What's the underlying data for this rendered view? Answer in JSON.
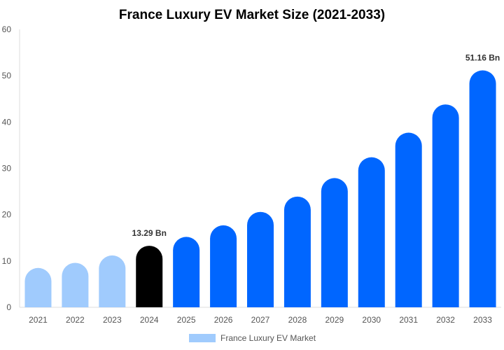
{
  "chart_data": {
    "type": "bar",
    "title": "France Luxury EV Market Size (2021-2033)",
    "xlabel": "",
    "ylabel": "",
    "ylim": [
      0,
      60
    ],
    "yticks": [
      0,
      10,
      20,
      30,
      40,
      50,
      60
    ],
    "categories": [
      "2021",
      "2022",
      "2023",
      "2024",
      "2025",
      "2026",
      "2027",
      "2028",
      "2029",
      "2030",
      "2031",
      "2032",
      "2033"
    ],
    "series": [
      {
        "name": "France Luxury EV Market",
        "values": [
          8.5,
          9.6,
          11.2,
          13.29,
          15.2,
          17.7,
          20.6,
          23.9,
          27.9,
          32.4,
          37.7,
          43.8,
          51.16
        ]
      }
    ],
    "bar_colors": [
      "#a0cbfd",
      "#a0cbfd",
      "#a0cbfd",
      "#000000",
      "#0066ff",
      "#0066ff",
      "#0066ff",
      "#0066ff",
      "#0066ff",
      "#0066ff",
      "#0066ff",
      "#0066ff",
      "#0066ff"
    ],
    "data_labels": [
      {
        "index": 3,
        "text": "13.29 Bn"
      },
      {
        "index": 12,
        "text": "51.16 Bn"
      }
    ],
    "legend": {
      "position": "bottom",
      "label": "France Luxury EV Market",
      "color": "#a0cbfd"
    },
    "grid": false
  }
}
